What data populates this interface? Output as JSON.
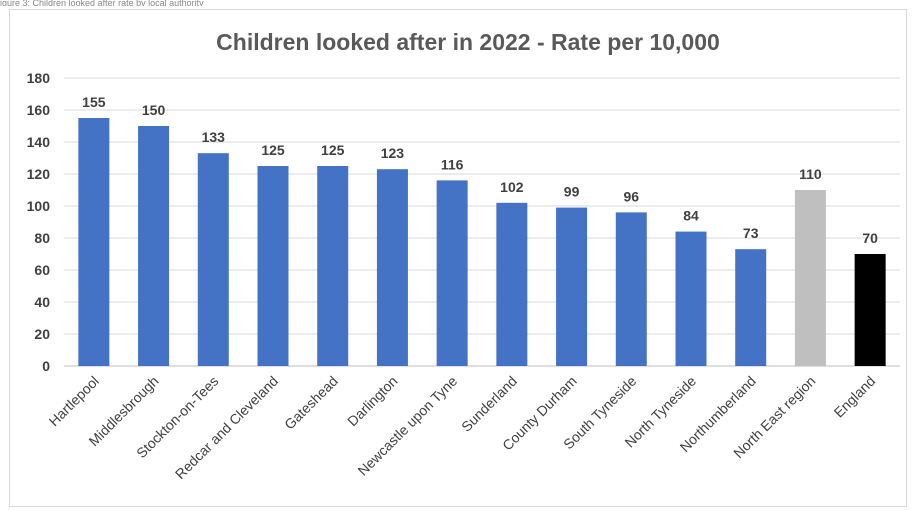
{
  "page": {
    "partial_caption": "igure 3: Children looked after rate by local authority"
  },
  "chart_data": {
    "type": "bar",
    "title": "Children looked after in 2022 - Rate per 10,000",
    "xlabel": "",
    "ylabel": "",
    "ylim": [
      0,
      180
    ],
    "yticks": [
      0,
      20,
      40,
      60,
      80,
      100,
      120,
      140,
      160,
      180
    ],
    "grid": true,
    "legend": "none",
    "categories": [
      "Hartlepool",
      "Middlesbrough",
      "Stockton-on-Tees",
      "Redcar and Cleveland",
      "Gateshead",
      "Darlington",
      "Newcastle upon Tyne",
      "Sunderland",
      "County Durham",
      "South Tyneside",
      "North Tyneside",
      "Northumberland",
      "North East region",
      "England"
    ],
    "values": [
      155,
      150,
      133,
      125,
      125,
      123,
      116,
      102,
      99,
      96,
      84,
      73,
      110,
      70
    ],
    "bar_colors": [
      "#4472c4",
      "#4472c4",
      "#4472c4",
      "#4472c4",
      "#4472c4",
      "#4472c4",
      "#4472c4",
      "#4472c4",
      "#4472c4",
      "#4472c4",
      "#4472c4",
      "#4472c4",
      "#bfbfbf",
      "#000000"
    ],
    "gridline_color": "#d9d9d9"
  }
}
